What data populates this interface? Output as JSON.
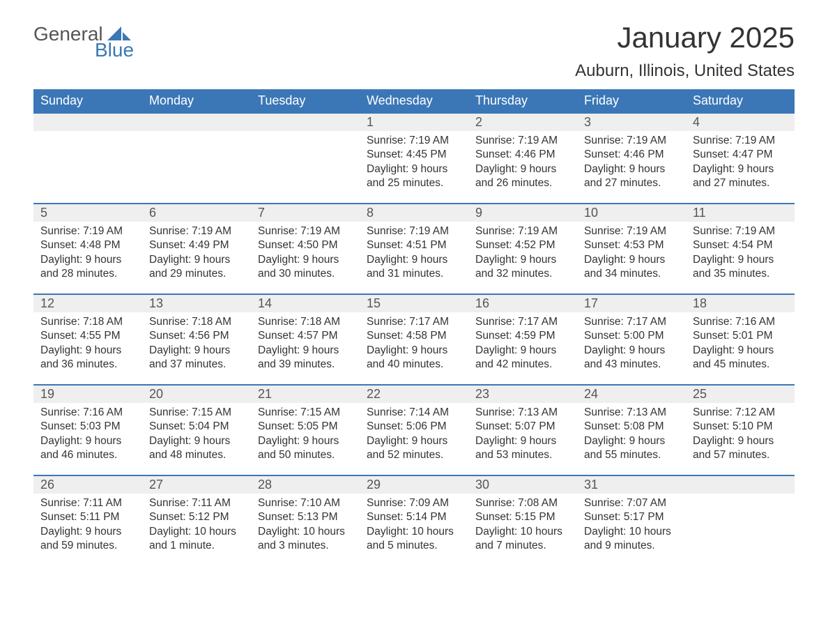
{
  "logo": {
    "word1": "General",
    "word2": "Blue",
    "shape_color": "#3b77b7",
    "text1_color": "#555555"
  },
  "title": "January 2025",
  "location": "Auburn, Illinois, United States",
  "colors": {
    "header_bg": "#3b77b7",
    "header_text": "#ffffff",
    "daynum_bg": "#efefef",
    "row_border": "#3b77b7",
    "body_text": "#333333",
    "background": "#ffffff"
  },
  "fonts": {
    "title_size": 42,
    "location_size": 24,
    "header_size": 18,
    "daynum_size": 18,
    "cell_size": 15.5
  },
  "weekdays": [
    "Sunday",
    "Monday",
    "Tuesday",
    "Wednesday",
    "Thursday",
    "Friday",
    "Saturday"
  ],
  "weeks": [
    [
      null,
      null,
      null,
      {
        "n": "1",
        "sunrise": "Sunrise: 7:19 AM",
        "sunset": "Sunset: 4:45 PM",
        "day1": "Daylight: 9 hours",
        "day2": "and 25 minutes."
      },
      {
        "n": "2",
        "sunrise": "Sunrise: 7:19 AM",
        "sunset": "Sunset: 4:46 PM",
        "day1": "Daylight: 9 hours",
        "day2": "and 26 minutes."
      },
      {
        "n": "3",
        "sunrise": "Sunrise: 7:19 AM",
        "sunset": "Sunset: 4:46 PM",
        "day1": "Daylight: 9 hours",
        "day2": "and 27 minutes."
      },
      {
        "n": "4",
        "sunrise": "Sunrise: 7:19 AM",
        "sunset": "Sunset: 4:47 PM",
        "day1": "Daylight: 9 hours",
        "day2": "and 27 minutes."
      }
    ],
    [
      {
        "n": "5",
        "sunrise": "Sunrise: 7:19 AM",
        "sunset": "Sunset: 4:48 PM",
        "day1": "Daylight: 9 hours",
        "day2": "and 28 minutes."
      },
      {
        "n": "6",
        "sunrise": "Sunrise: 7:19 AM",
        "sunset": "Sunset: 4:49 PM",
        "day1": "Daylight: 9 hours",
        "day2": "and 29 minutes."
      },
      {
        "n": "7",
        "sunrise": "Sunrise: 7:19 AM",
        "sunset": "Sunset: 4:50 PM",
        "day1": "Daylight: 9 hours",
        "day2": "and 30 minutes."
      },
      {
        "n": "8",
        "sunrise": "Sunrise: 7:19 AM",
        "sunset": "Sunset: 4:51 PM",
        "day1": "Daylight: 9 hours",
        "day2": "and 31 minutes."
      },
      {
        "n": "9",
        "sunrise": "Sunrise: 7:19 AM",
        "sunset": "Sunset: 4:52 PM",
        "day1": "Daylight: 9 hours",
        "day2": "and 32 minutes."
      },
      {
        "n": "10",
        "sunrise": "Sunrise: 7:19 AM",
        "sunset": "Sunset: 4:53 PM",
        "day1": "Daylight: 9 hours",
        "day2": "and 34 minutes."
      },
      {
        "n": "11",
        "sunrise": "Sunrise: 7:19 AM",
        "sunset": "Sunset: 4:54 PM",
        "day1": "Daylight: 9 hours",
        "day2": "and 35 minutes."
      }
    ],
    [
      {
        "n": "12",
        "sunrise": "Sunrise: 7:18 AM",
        "sunset": "Sunset: 4:55 PM",
        "day1": "Daylight: 9 hours",
        "day2": "and 36 minutes."
      },
      {
        "n": "13",
        "sunrise": "Sunrise: 7:18 AM",
        "sunset": "Sunset: 4:56 PM",
        "day1": "Daylight: 9 hours",
        "day2": "and 37 minutes."
      },
      {
        "n": "14",
        "sunrise": "Sunrise: 7:18 AM",
        "sunset": "Sunset: 4:57 PM",
        "day1": "Daylight: 9 hours",
        "day2": "and 39 minutes."
      },
      {
        "n": "15",
        "sunrise": "Sunrise: 7:17 AM",
        "sunset": "Sunset: 4:58 PM",
        "day1": "Daylight: 9 hours",
        "day2": "and 40 minutes."
      },
      {
        "n": "16",
        "sunrise": "Sunrise: 7:17 AM",
        "sunset": "Sunset: 4:59 PM",
        "day1": "Daylight: 9 hours",
        "day2": "and 42 minutes."
      },
      {
        "n": "17",
        "sunrise": "Sunrise: 7:17 AM",
        "sunset": "Sunset: 5:00 PM",
        "day1": "Daylight: 9 hours",
        "day2": "and 43 minutes."
      },
      {
        "n": "18",
        "sunrise": "Sunrise: 7:16 AM",
        "sunset": "Sunset: 5:01 PM",
        "day1": "Daylight: 9 hours",
        "day2": "and 45 minutes."
      }
    ],
    [
      {
        "n": "19",
        "sunrise": "Sunrise: 7:16 AM",
        "sunset": "Sunset: 5:03 PM",
        "day1": "Daylight: 9 hours",
        "day2": "and 46 minutes."
      },
      {
        "n": "20",
        "sunrise": "Sunrise: 7:15 AM",
        "sunset": "Sunset: 5:04 PM",
        "day1": "Daylight: 9 hours",
        "day2": "and 48 minutes."
      },
      {
        "n": "21",
        "sunrise": "Sunrise: 7:15 AM",
        "sunset": "Sunset: 5:05 PM",
        "day1": "Daylight: 9 hours",
        "day2": "and 50 minutes."
      },
      {
        "n": "22",
        "sunrise": "Sunrise: 7:14 AM",
        "sunset": "Sunset: 5:06 PM",
        "day1": "Daylight: 9 hours",
        "day2": "and 52 minutes."
      },
      {
        "n": "23",
        "sunrise": "Sunrise: 7:13 AM",
        "sunset": "Sunset: 5:07 PM",
        "day1": "Daylight: 9 hours",
        "day2": "and 53 minutes."
      },
      {
        "n": "24",
        "sunrise": "Sunrise: 7:13 AM",
        "sunset": "Sunset: 5:08 PM",
        "day1": "Daylight: 9 hours",
        "day2": "and 55 minutes."
      },
      {
        "n": "25",
        "sunrise": "Sunrise: 7:12 AM",
        "sunset": "Sunset: 5:10 PM",
        "day1": "Daylight: 9 hours",
        "day2": "and 57 minutes."
      }
    ],
    [
      {
        "n": "26",
        "sunrise": "Sunrise: 7:11 AM",
        "sunset": "Sunset: 5:11 PM",
        "day1": "Daylight: 9 hours",
        "day2": "and 59 minutes."
      },
      {
        "n": "27",
        "sunrise": "Sunrise: 7:11 AM",
        "sunset": "Sunset: 5:12 PM",
        "day1": "Daylight: 10 hours",
        "day2": "and 1 minute."
      },
      {
        "n": "28",
        "sunrise": "Sunrise: 7:10 AM",
        "sunset": "Sunset: 5:13 PM",
        "day1": "Daylight: 10 hours",
        "day2": "and 3 minutes."
      },
      {
        "n": "29",
        "sunrise": "Sunrise: 7:09 AM",
        "sunset": "Sunset: 5:14 PM",
        "day1": "Daylight: 10 hours",
        "day2": "and 5 minutes."
      },
      {
        "n": "30",
        "sunrise": "Sunrise: 7:08 AM",
        "sunset": "Sunset: 5:15 PM",
        "day1": "Daylight: 10 hours",
        "day2": "and 7 minutes."
      },
      {
        "n": "31",
        "sunrise": "Sunrise: 7:07 AM",
        "sunset": "Sunset: 5:17 PM",
        "day1": "Daylight: 10 hours",
        "day2": "and 9 minutes."
      },
      null
    ]
  ]
}
